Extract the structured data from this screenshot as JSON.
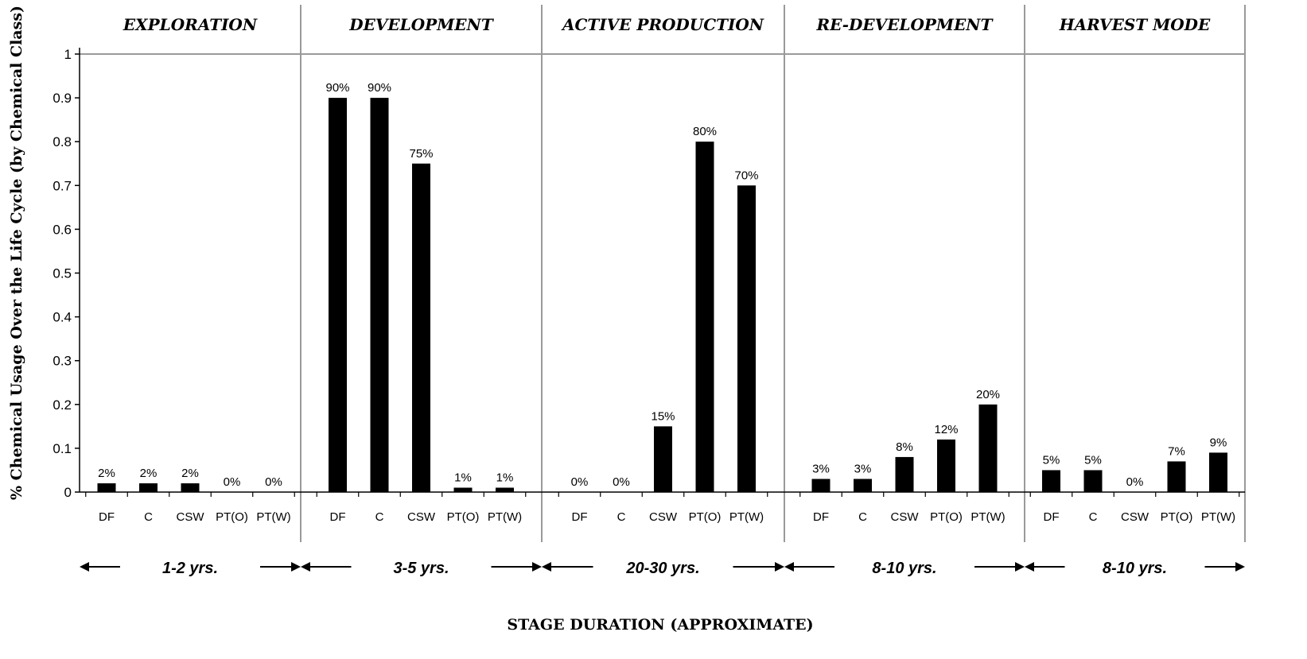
{
  "chart_data": {
    "type": "bar",
    "title": "",
    "ylabel": "% Chemical Usage Over the Life Cycle  (by Chemical Class)",
    "xlabel": "STAGE DURATION (APPROXIMATE)",
    "ylim": [
      0,
      1
    ],
    "yticks": [
      "0",
      "0.1",
      "0.2",
      "0.3",
      "0.4",
      "0.5",
      "0.6",
      "0.7",
      "0.8",
      "0.9",
      "1"
    ],
    "grid": false,
    "bar_color": "#000000",
    "categories": [
      "DF",
      "C",
      "CSW",
      "PT(O)",
      "PT(W)"
    ],
    "stages": [
      {
        "name": "EXPLORATION",
        "duration": "1-2 yrs.",
        "values": [
          0.02,
          0.02,
          0.02,
          0,
          0
        ],
        "labels": [
          "2%",
          "2%",
          "2%",
          "0%",
          "0%"
        ]
      },
      {
        "name": "DEVELOPMENT",
        "duration": "3-5 yrs.",
        "values": [
          0.9,
          0.9,
          0.75,
          0.01,
          0.01
        ],
        "labels": [
          "90%",
          "90%",
          "75%",
          "1%",
          "1%"
        ]
      },
      {
        "name": "ACTIVE PRODUCTION",
        "duration": "20-30 yrs.",
        "values": [
          0,
          0,
          0.15,
          0.8,
          0.7
        ],
        "labels": [
          "0%",
          "0%",
          "15%",
          "80%",
          "70%"
        ]
      },
      {
        "name": "RE-DEVELOPMENT",
        "duration": "8-10 yrs.",
        "values": [
          0.03,
          0.03,
          0.08,
          0.12,
          0.2
        ],
        "labels": [
          "3%",
          "3%",
          "8%",
          "12%",
          "20%"
        ]
      },
      {
        "name": "HARVEST MODE",
        "duration": "8-10 yrs.",
        "values": [
          0.05,
          0.05,
          0,
          0.07,
          0.09
        ],
        "labels": [
          "5%",
          "5%",
          "0%",
          "7%",
          "9%"
        ]
      }
    ]
  }
}
